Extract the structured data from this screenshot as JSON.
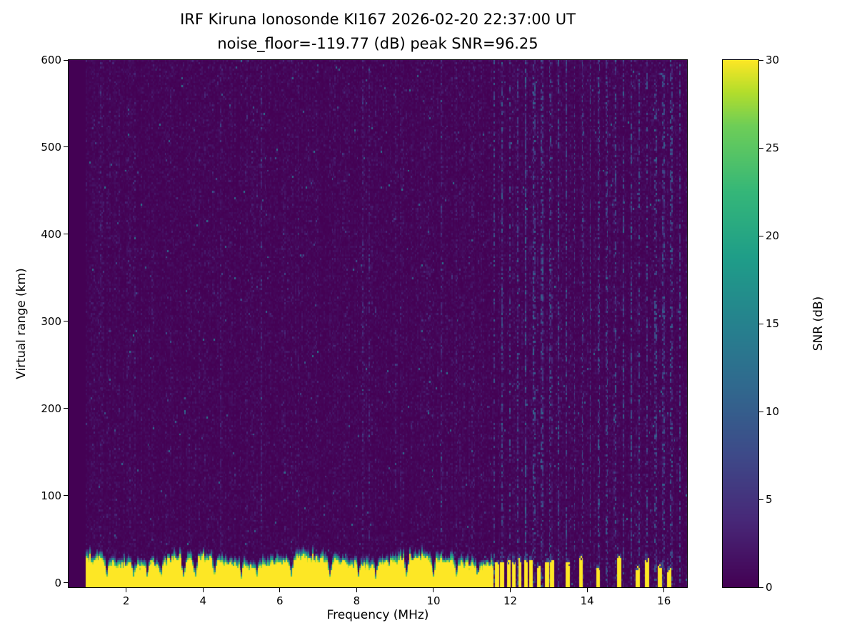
{
  "chart_data": {
    "type": "heatmap",
    "title": "IRF Kiruna Ionosonde KI167 2026-02-20 22:37:00  UT",
    "subtitle": "noise_floor=-119.77 (dB) peak SNR=96.25",
    "xlabel": "Frequency (MHz)",
    "ylabel": "Virtual range (km)",
    "colorbar_label": "SNR (dB)",
    "xlim": [
      0.5,
      16.6
    ],
    "ylim": [
      -5,
      600
    ],
    "clim": [
      0,
      30
    ],
    "xticks": [
      2,
      4,
      6,
      8,
      10,
      12,
      14,
      16
    ],
    "yticks": [
      0,
      100,
      200,
      300,
      400,
      500,
      600
    ],
    "colorbar_ticks": [
      0,
      5,
      10,
      15,
      20,
      25,
      30
    ],
    "colormap": "viridis",
    "viridis_stops": [
      [
        0.0,
        68,
        1,
        84
      ],
      [
        0.125,
        72,
        40,
        120
      ],
      [
        0.25,
        62,
        74,
        137
      ],
      [
        0.375,
        49,
        104,
        142
      ],
      [
        0.5,
        38,
        130,
        142
      ],
      [
        0.625,
        31,
        158,
        137
      ],
      [
        0.75,
        53,
        183,
        121
      ],
      [
        0.875,
        110,
        206,
        88
      ],
      [
        0.94,
        180,
        222,
        44
      ],
      [
        1.0,
        253,
        231,
        37
      ]
    ],
    "background_color": "#440154",
    "figure_color": "#ffffff",
    "seed": 167,
    "noise": {
      "min_freq": 0.95,
      "mean_snr_db": 0.7,
      "speckle_prob": 0.003,
      "speckle_snr_db": [
        6,
        14
      ],
      "stripe_start_freq": 11.55,
      "stripe_spacing_mhz": 0.21
    },
    "ground_clutter": {
      "max_freq": 11.55,
      "top_km": 24,
      "green_band_km": 8,
      "snr_db": 30,
      "notch_width_mhz": 0.07
    },
    "notches_mhz": [
      1.5,
      2.2,
      2.55,
      2.9,
      3.5,
      3.8,
      4.3,
      5.0,
      5.4,
      6.3,
      7.3,
      8.05,
      8.5,
      9.3,
      10.0,
      10.6,
      11.15
    ],
    "rfi_bars_mhz": [
      11.65,
      11.8,
      11.95,
      12.1,
      12.25,
      12.4,
      12.55,
      12.75,
      12.95,
      13.1,
      13.5,
      13.85,
      14.3,
      14.85,
      15.3,
      15.55,
      15.9,
      16.15
    ],
    "rfi_bar_height_km": [
      14,
      30
    ]
  }
}
